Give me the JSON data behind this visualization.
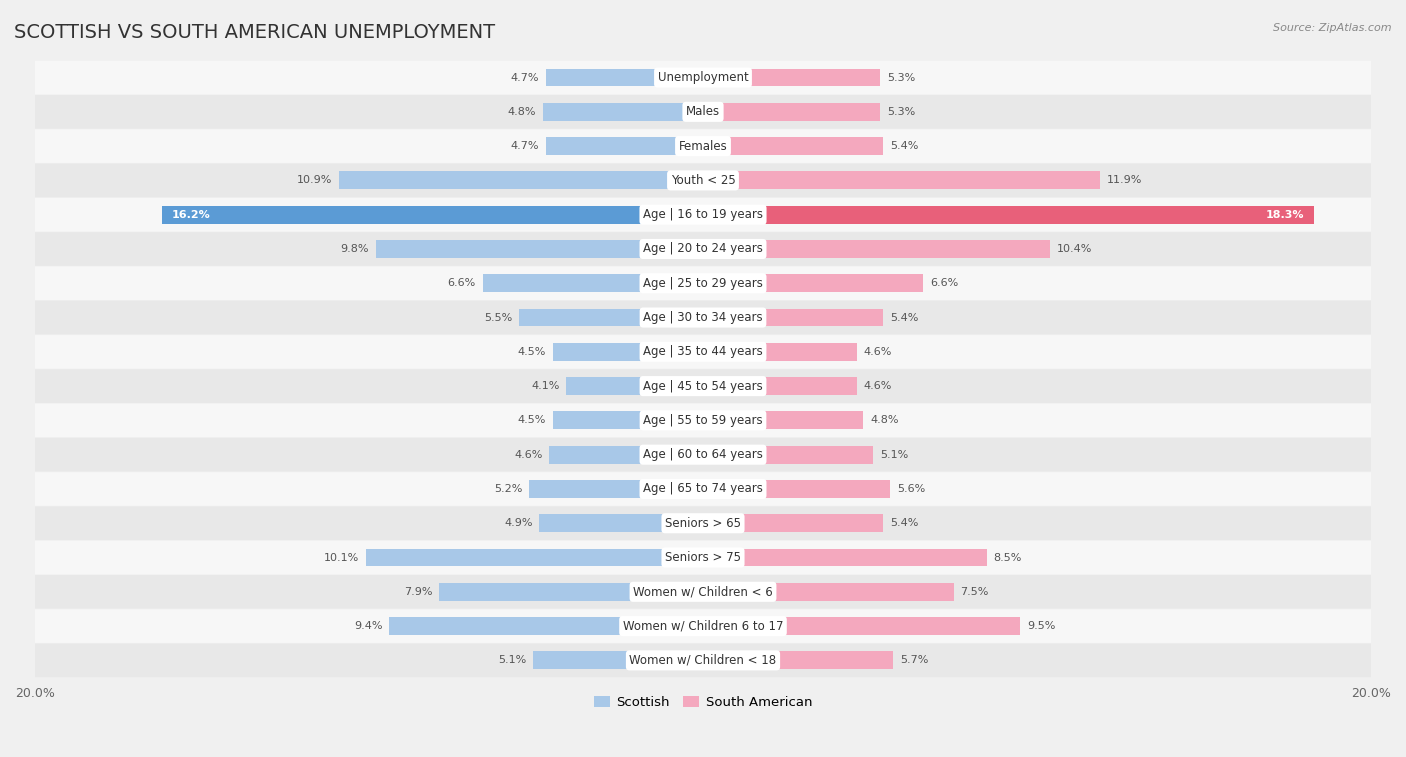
{
  "title": "SCOTTISH VS SOUTH AMERICAN UNEMPLOYMENT",
  "source": "Source: ZipAtlas.com",
  "categories": [
    "Unemployment",
    "Males",
    "Females",
    "Youth < 25",
    "Age | 16 to 19 years",
    "Age | 20 to 24 years",
    "Age | 25 to 29 years",
    "Age | 30 to 34 years",
    "Age | 35 to 44 years",
    "Age | 45 to 54 years",
    "Age | 55 to 59 years",
    "Age | 60 to 64 years",
    "Age | 65 to 74 years",
    "Seniors > 65",
    "Seniors > 75",
    "Women w/ Children < 6",
    "Women w/ Children 6 to 17",
    "Women w/ Children < 18"
  ],
  "scottish": [
    4.7,
    4.8,
    4.7,
    10.9,
    16.2,
    9.8,
    6.6,
    5.5,
    4.5,
    4.1,
    4.5,
    4.6,
    5.2,
    4.9,
    10.1,
    7.9,
    9.4,
    5.1
  ],
  "south_american": [
    5.3,
    5.3,
    5.4,
    11.9,
    18.3,
    10.4,
    6.6,
    5.4,
    4.6,
    4.6,
    4.8,
    5.1,
    5.6,
    5.4,
    8.5,
    7.5,
    9.5,
    5.7
  ],
  "scottish_color": "#a8c8e8",
  "south_american_color": "#f4a8be",
  "scottish_highlight_color": "#5b9bd5",
  "south_american_highlight_color": "#e8607a",
  "bar_height": 0.52,
  "xlim": 20.0,
  "bg_color": "#f0f0f0",
  "row_light_color": "#f7f7f7",
  "row_dark_color": "#e8e8e8",
  "label_fontsize": 8.5,
  "title_fontsize": 14,
  "value_fontsize": 8.0,
  "legend_fontsize": 9.5,
  "center_label_bg": "#ffffff"
}
